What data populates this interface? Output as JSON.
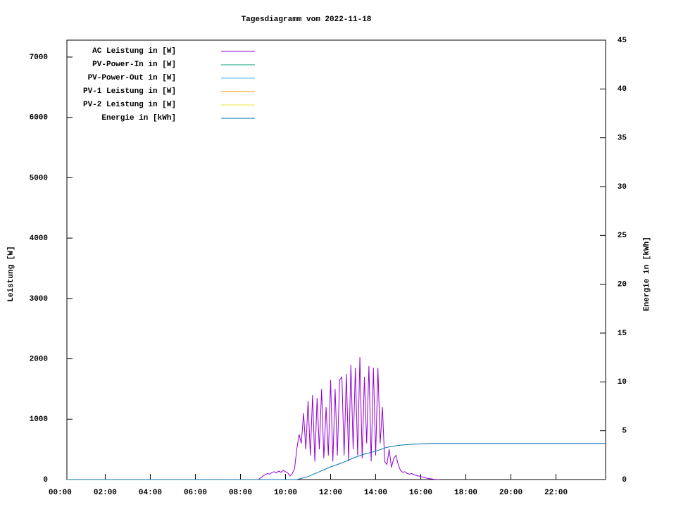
{
  "chart_data": {
    "type": "line",
    "title": "Tagesdiagramm vom 2022-11-18",
    "y_label": "Leistung [W]",
    "y2_label": "Energie in [kWh]",
    "xlim": [
      0.3,
      24.2
    ],
    "xticks": [
      {
        "value": 0,
        "label": "00:00"
      },
      {
        "value": 2,
        "label": "02:00"
      },
      {
        "value": 4,
        "label": "04:00"
      },
      {
        "value": 6,
        "label": "06:00"
      },
      {
        "value": 8,
        "label": "08:00"
      },
      {
        "value": 10,
        "label": "10:00"
      },
      {
        "value": 12,
        "label": "12:00"
      },
      {
        "value": 14,
        "label": "14:00"
      },
      {
        "value": 16,
        "label": "16:00"
      },
      {
        "value": 18,
        "label": "18:00"
      },
      {
        "value": 20,
        "label": "20:00"
      },
      {
        "value": 22,
        "label": "22:00"
      }
    ],
    "ylim": [
      0,
      7280
    ],
    "yticks": [
      0,
      1000,
      2000,
      3000,
      4000,
      5000,
      6000,
      7000
    ],
    "y2lim": [
      0,
      45
    ],
    "y2ticks": [
      0,
      5,
      10,
      15,
      20,
      25,
      30,
      35,
      40,
      45
    ],
    "series": [
      {
        "name": "AC Leistung in [W]",
        "color": "#9400d3",
        "x": [
          8.8,
          8.9,
          9.0,
          9.1,
          9.2,
          9.3,
          9.4,
          9.5,
          9.6,
          9.7,
          9.8,
          9.9,
          10.0,
          10.1,
          10.2,
          10.3,
          10.4,
          10.5,
          10.6,
          10.7,
          10.8,
          10.9,
          11.0,
          11.1,
          11.2,
          11.3,
          11.4,
          11.5,
          11.6,
          11.7,
          11.8,
          11.9,
          12.0,
          12.1,
          12.2,
          12.3,
          12.4,
          12.5,
          12.6,
          12.7,
          12.8,
          12.9,
          13.0,
          13.1,
          13.2,
          13.3,
          13.4,
          13.5,
          13.6,
          13.7,
          13.8,
          13.9,
          14.0,
          14.1,
          14.2,
          14.3,
          14.4,
          14.5,
          14.6,
          14.7,
          14.8,
          14.9,
          15.0,
          15.1,
          15.2,
          15.3,
          15.4,
          15.5,
          15.6,
          15.7,
          15.8,
          15.9,
          16.0,
          16.1,
          16.2,
          16.3,
          16.4,
          16.5,
          16.6,
          16.7,
          16.8
        ],
        "values": [
          0,
          30,
          60,
          80,
          100,
          90,
          120,
          130,
          110,
          140,
          120,
          150,
          130,
          110,
          60,
          100,
          180,
          500,
          750,
          600,
          1100,
          500,
          1300,
          400,
          1400,
          300,
          1350,
          500,
          1500,
          350,
          1200,
          400,
          1650,
          300,
          1500,
          400,
          1650,
          1700,
          400,
          1750,
          300,
          1900,
          500,
          1850,
          400,
          2030,
          350,
          1700,
          600,
          1880,
          300,
          1850,
          400,
          1850,
          600,
          1200,
          300,
          250,
          500,
          200,
          350,
          400,
          250,
          150,
          120,
          130,
          100,
          90,
          100,
          80,
          70,
          60,
          50,
          40,
          30,
          20,
          15,
          10,
          5,
          2,
          0
        ]
      },
      {
        "name": "PV-Power-In in [W]",
        "color": "#009e73"
      },
      {
        "name": "PV-Power-Out in [W]",
        "color": "#56b4e9"
      },
      {
        "name": "PV-1 Leistung in [W]",
        "color": "#e69f00"
      },
      {
        "name": "PV-2 Leistung in [W]",
        "color": "#f0e442"
      },
      {
        "name": "Energie in [kWh]",
        "color": "#0072b2",
        "axis": "y2",
        "x": [
          0.3,
          10.5,
          11,
          11.5,
          12,
          12.5,
          13,
          13.5,
          14,
          14.5,
          15,
          15.5,
          16,
          16.5,
          17,
          24.2
        ],
        "values": [
          0,
          0,
          0.3,
          0.8,
          1.3,
          1.7,
          2.2,
          2.6,
          2.9,
          3.3,
          3.5,
          3.6,
          3.65,
          3.7,
          3.7,
          3.7
        ]
      }
    ]
  }
}
